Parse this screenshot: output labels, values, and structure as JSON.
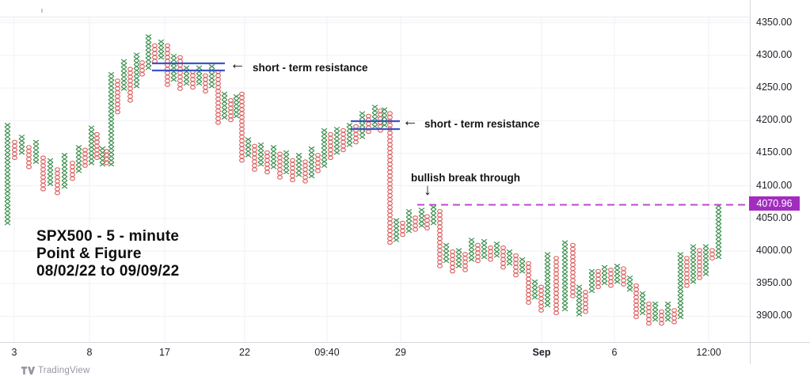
{
  "chart": {
    "title_lines": [
      "SPX500 - 5 - minute",
      "Point & Figure",
      "08/02/22 to 09/09/22"
    ],
    "watermark": "TradingView",
    "price_label": "4070.96",
    "annotations": {
      "resistance1": {
        "arrow": "←",
        "label": "short - term resistance"
      },
      "resistance2": {
        "arrow": "←",
        "label": "short - term resistance"
      },
      "breakthrough": {
        "label": "bullish break through",
        "arrow": "↓"
      }
    },
    "colors": {
      "x_column": "#3a8f4c",
      "o_column": "#df6464",
      "resistance_line": "#3d55c4",
      "target_dashed_line": "#bf4bd2",
      "badge_bg": "#a22cbe",
      "badge_text": "#ffffff",
      "grid": "#f0f1f5",
      "axis_text": "#1b1f27"
    }
  },
  "chart_data": {
    "type": "point_and_figure",
    "symbol": "SPX500",
    "timeframe": "5-minute",
    "date_range": "08/02/22 to 09/09/22",
    "box_size": 6,
    "last_price": 4070.96,
    "target_line": {
      "price": 4070.96,
      "style": "dashed"
    },
    "resistance_zones": [
      {
        "prices": [
          4290,
          4279
        ],
        "label": "short - term resistance"
      },
      {
        "prices": [
          4200,
          4188
        ],
        "label": "short - term resistance"
      }
    ],
    "x_axis": {
      "ticks": [
        "3",
        "8",
        "17",
        "22",
        "09:40",
        "29",
        "Sep",
        "6",
        "12:00"
      ]
    },
    "y_axis": {
      "ticks": [
        4350,
        4300,
        4250,
        4200,
        4150,
        4100,
        4050,
        4000,
        3950,
        3900
      ],
      "range": [
        3870,
        4365
      ]
    },
    "columns": [
      [
        6,
        "X",
        4040,
        4196
      ],
      [
        15,
        "O",
        4140,
        4172
      ],
      [
        24,
        "X",
        4148,
        4180
      ],
      [
        33,
        "O",
        4126,
        4164
      ],
      [
        42,
        "X",
        4134,
        4168
      ],
      [
        51,
        "O",
        4092,
        4148
      ],
      [
        60,
        "X",
        4100,
        4140
      ],
      [
        69,
        "O",
        4086,
        4126
      ],
      [
        78,
        "X",
        4096,
        4150
      ],
      [
        88,
        "O",
        4108,
        4140
      ],
      [
        96,
        "X",
        4120,
        4164
      ],
      [
        104,
        "O",
        4128,
        4158
      ],
      [
        112,
        "X",
        4132,
        4192
      ],
      [
        119,
        "O",
        4140,
        4180
      ],
      [
        126,
        "X",
        4130,
        4158
      ],
      [
        131,
        "O",
        4132,
        4156
      ],
      [
        137,
        "X",
        4130,
        4272
      ],
      [
        145,
        "O",
        4210,
        4262
      ],
      [
        153,
        "X",
        4246,
        4292
      ],
      [
        161,
        "O",
        4228,
        4282
      ],
      [
        169,
        "X",
        4250,
        4306
      ],
      [
        176,
        "O",
        4268,
        4294
      ],
      [
        184,
        "X",
        4278,
        4330
      ],
      [
        192,
        "O",
        4288,
        4320
      ],
      [
        200,
        "X",
        4294,
        4324
      ],
      [
        208,
        "O",
        4252,
        4316
      ],
      [
        216,
        "X",
        4260,
        4300
      ],
      [
        224,
        "O",
        4246,
        4298
      ],
      [
        232,
        "X",
        4254,
        4286
      ],
      [
        240,
        "O",
        4248,
        4278
      ],
      [
        248,
        "X",
        4254,
        4284
      ],
      [
        256,
        "O",
        4242,
        4274
      ],
      [
        264,
        "X",
        4250,
        4288
      ],
      [
        272,
        "O",
        4194,
        4280
      ],
      [
        280,
        "X",
        4202,
        4242
      ],
      [
        288,
        "O",
        4198,
        4234
      ],
      [
        295,
        "X",
        4204,
        4240
      ],
      [
        302,
        "O",
        4136,
        4242
      ],
      [
        310,
        "X",
        4144,
        4174
      ],
      [
        318,
        "O",
        4122,
        4162
      ],
      [
        326,
        "X",
        4130,
        4166
      ],
      [
        334,
        "O",
        4118,
        4154
      ],
      [
        342,
        "X",
        4126,
        4160
      ],
      [
        350,
        "O",
        4110,
        4150
      ],
      [
        358,
        "X",
        4118,
        4152
      ],
      [
        366,
        "O",
        4106,
        4144
      ],
      [
        374,
        "X",
        4114,
        4148
      ],
      [
        382,
        "O",
        4104,
        4140
      ],
      [
        390,
        "X",
        4112,
        4158
      ],
      [
        398,
        "O",
        4120,
        4152
      ],
      [
        406,
        "X",
        4128,
        4188
      ],
      [
        414,
        "O",
        4140,
        4180
      ],
      [
        422,
        "X",
        4148,
        4192
      ],
      [
        430,
        "O",
        4152,
        4186
      ],
      [
        438,
        "X",
        4160,
        4198
      ],
      [
        446,
        "O",
        4164,
        4196
      ],
      [
        454,
        "X",
        4172,
        4214
      ],
      [
        462,
        "O",
        4180,
        4210
      ],
      [
        470,
        "X",
        4188,
        4224
      ],
      [
        477,
        "O",
        4182,
        4218
      ],
      [
        482,
        "X",
        4190,
        4220
      ],
      [
        489,
        "O",
        4010,
        4212
      ],
      [
        497,
        "X",
        4014,
        4052
      ],
      [
        505,
        "O",
        4022,
        4048
      ],
      [
        513,
        "X",
        4028,
        4062
      ],
      [
        521,
        "O",
        4030,
        4056
      ],
      [
        529,
        "X",
        4036,
        4066
      ],
      [
        536,
        "O",
        4032,
        4058
      ],
      [
        544,
        "X",
        4040,
        4072
      ],
      [
        552,
        "O",
        3974,
        4066
      ],
      [
        560,
        "X",
        3982,
        4012
      ],
      [
        568,
        "O",
        3966,
        4002
      ],
      [
        576,
        "X",
        3974,
        4006
      ],
      [
        584,
        "O",
        3968,
        3998
      ],
      [
        592,
        "X",
        3984,
        4018
      ],
      [
        600,
        "O",
        3982,
        4012
      ],
      [
        608,
        "X",
        3988,
        4016
      ],
      [
        616,
        "O",
        3984,
        4010
      ],
      [
        624,
        "X",
        3990,
        4016
      ],
      [
        632,
        "O",
        3972,
        4008
      ],
      [
        640,
        "X",
        3978,
        4004
      ],
      [
        648,
        "O",
        3960,
        3996
      ],
      [
        656,
        "X",
        3966,
        3992
      ],
      [
        664,
        "O",
        3918,
        3984
      ],
      [
        672,
        "X",
        3926,
        3958
      ],
      [
        680,
        "O",
        3906,
        3950
      ],
      [
        688,
        "X",
        3914,
        3998
      ],
      [
        699,
        "O",
        3902,
        3990
      ],
      [
        710,
        "X",
        3908,
        4018
      ],
      [
        720,
        "O",
        3928,
        4012
      ],
      [
        728,
        "X",
        3900,
        3946
      ],
      [
        736,
        "O",
        3904,
        3940
      ],
      [
        744,
        "X",
        3936,
        3974
      ],
      [
        752,
        "O",
        3942,
        3970
      ],
      [
        760,
        "X",
        3948,
        3978
      ],
      [
        768,
        "O",
        3944,
        3972
      ],
      [
        776,
        "X",
        3950,
        3980
      ],
      [
        784,
        "O",
        3946,
        3976
      ],
      [
        792,
        "X",
        3938,
        3962
      ],
      [
        800,
        "O",
        3896,
        3950
      ],
      [
        808,
        "X",
        3902,
        3938
      ],
      [
        816,
        "O",
        3886,
        3924
      ],
      [
        824,
        "X",
        3892,
        3920
      ],
      [
        832,
        "O",
        3886,
        3912
      ],
      [
        840,
        "X",
        3892,
        3920
      ],
      [
        848,
        "O",
        3888,
        3914
      ],
      [
        856,
        "X",
        3896,
        3996
      ],
      [
        864,
        "O",
        3944,
        3990
      ],
      [
        872,
        "X",
        3950,
        4008
      ],
      [
        880,
        "O",
        3956,
        4002
      ],
      [
        888,
        "X",
        3962,
        4008
      ],
      [
        896,
        "O",
        3986,
        4002
      ],
      [
        904,
        "X",
        3988,
        4074
      ]
    ]
  }
}
